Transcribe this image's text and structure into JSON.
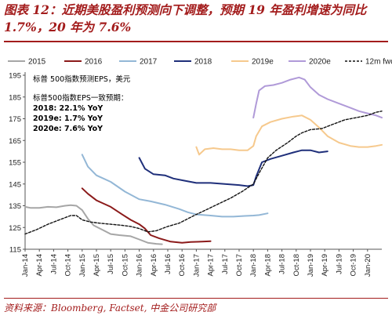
{
  "header": {
    "title": "图表 12：近期美股盈利预测向下调整，预期 19 年盈利增速为同比 1.7%，20 年为 7.6%"
  },
  "source": "资料来源：Bloomberg, Factset, 中金公司研究部",
  "chart_data": {
    "type": "line",
    "title": "",
    "xlabel": "",
    "ylabel": "",
    "ylim": [
      115,
      195
    ],
    "yticks": [
      115,
      125,
      135,
      145,
      155,
      165,
      175,
      185,
      195
    ],
    "x_range": [
      2014.0,
      2020.25
    ],
    "x_tick_labels": [
      "Jan-14",
      "Apr-14",
      "Jul-14",
      "Oct-14",
      "Jan-15",
      "Apr-15",
      "Jul-15",
      "Oct-15",
      "Jan-16",
      "Apr-16",
      "Jul-16",
      "Oct-16",
      "Jan-17",
      "Apr-17",
      "Jul-17",
      "Oct-17",
      "Jan-18",
      "Apr-18",
      "Jul-18",
      "Oct-18",
      "Jan-19",
      "Apr-19",
      "Jul-19",
      "Oct-19",
      "Jan-20"
    ],
    "grid": false,
    "legend_placement": "top",
    "annotations": [
      "标普 500指数预测EPS，美元",
      "标普500指数EPS一致预期：",
      "2018: 22.1% YoY",
      "2019e: 1.7% YoY",
      "2020e: 7.6% YoY"
    ],
    "series": [
      {
        "name": "2015",
        "color": "#a6a6a6",
        "dash": "solid",
        "points": [
          [
            2014.0,
            134.5
          ],
          [
            2014.1,
            134.0
          ],
          [
            2014.25,
            134.0
          ],
          [
            2014.4,
            134.5
          ],
          [
            2014.55,
            134.3
          ],
          [
            2014.7,
            135.0
          ],
          [
            2014.8,
            135.3
          ],
          [
            2014.9,
            135.0
          ],
          [
            2015.0,
            133.0
          ],
          [
            2015.1,
            129.0
          ],
          [
            2015.2,
            126.0
          ],
          [
            2015.35,
            124.0
          ],
          [
            2015.5,
            122.0
          ],
          [
            2015.65,
            121.5
          ],
          [
            2015.85,
            121.0
          ],
          [
            2016.0,
            119.5
          ],
          [
            2016.15,
            118.0
          ],
          [
            2016.3,
            117.5
          ],
          [
            2016.4,
            117.3
          ]
        ]
      },
      {
        "name": "2016",
        "color": "#8b1a1a",
        "dash": "solid",
        "points": [
          [
            2015.0,
            143.0
          ],
          [
            2015.1,
            140.5
          ],
          [
            2015.25,
            137.5
          ],
          [
            2015.5,
            134.5
          ],
          [
            2015.7,
            131.0
          ],
          [
            2015.85,
            128.5
          ],
          [
            2016.0,
            126.5
          ],
          [
            2016.1,
            124.5
          ],
          [
            2016.2,
            121.5
          ],
          [
            2016.35,
            120.0
          ],
          [
            2016.55,
            118.5
          ],
          [
            2016.75,
            118.0
          ],
          [
            2016.9,
            118.3
          ],
          [
            2017.1,
            118.5
          ],
          [
            2017.25,
            118.7
          ]
        ]
      },
      {
        "name": "2017",
        "color": "#93b7d6",
        "dash": "solid",
        "points": [
          [
            2015.0,
            158.5
          ],
          [
            2015.1,
            153.0
          ],
          [
            2015.25,
            149.0
          ],
          [
            2015.5,
            146.0
          ],
          [
            2015.75,
            141.5
          ],
          [
            2016.0,
            138.0
          ],
          [
            2016.2,
            137.0
          ],
          [
            2016.45,
            135.5
          ],
          [
            2016.7,
            133.5
          ],
          [
            2016.85,
            132.0
          ],
          [
            2017.0,
            131.0
          ],
          [
            2017.25,
            130.5
          ],
          [
            2017.45,
            130.0
          ],
          [
            2017.65,
            130.0
          ],
          [
            2017.85,
            130.3
          ],
          [
            2018.0,
            130.5
          ],
          [
            2018.1,
            130.7
          ],
          [
            2018.25,
            131.5
          ]
        ]
      },
      {
        "name": "2018",
        "color": "#1f2f7a",
        "dash": "solid",
        "points": [
          [
            2016.0,
            157.0
          ],
          [
            2016.1,
            152.0
          ],
          [
            2016.25,
            149.5
          ],
          [
            2016.45,
            149.0
          ],
          [
            2016.6,
            147.5
          ],
          [
            2016.8,
            146.5
          ],
          [
            2017.0,
            145.5
          ],
          [
            2017.25,
            145.5
          ],
          [
            2017.5,
            145.0
          ],
          [
            2017.75,
            144.5
          ],
          [
            2017.9,
            144.0
          ],
          [
            2018.0,
            144.5
          ],
          [
            2018.05,
            148.5
          ],
          [
            2018.15,
            155.0
          ],
          [
            2018.3,
            156.5
          ],
          [
            2018.5,
            158.0
          ],
          [
            2018.7,
            159.5
          ],
          [
            2018.85,
            160.5
          ],
          [
            2019.0,
            160.5
          ],
          [
            2019.15,
            159.5
          ],
          [
            2019.3,
            160.0
          ]
        ]
      },
      {
        "name": "2019e",
        "color": "#f6c98d",
        "dash": "solid",
        "points": [
          [
            2017.0,
            162.0
          ],
          [
            2017.05,
            158.5
          ],
          [
            2017.15,
            161.0
          ],
          [
            2017.3,
            161.5
          ],
          [
            2017.45,
            161.0
          ],
          [
            2017.6,
            161.0
          ],
          [
            2017.75,
            160.5
          ],
          [
            2017.9,
            160.5
          ],
          [
            2018.0,
            162.5
          ],
          [
            2018.05,
            167.0
          ],
          [
            2018.15,
            171.5
          ],
          [
            2018.3,
            173.5
          ],
          [
            2018.5,
            175.0
          ],
          [
            2018.7,
            176.0
          ],
          [
            2018.85,
            176.5
          ],
          [
            2019.0,
            174.5
          ],
          [
            2019.15,
            171.0
          ],
          [
            2019.3,
            167.0
          ],
          [
            2019.5,
            164.0
          ],
          [
            2019.7,
            162.5
          ],
          [
            2019.85,
            162.0
          ],
          [
            2020.0,
            162.0
          ],
          [
            2020.15,
            162.5
          ],
          [
            2020.25,
            163.0
          ]
        ]
      },
      {
        "name": "2020e",
        "color": "#b09ad8",
        "dash": "solid",
        "points": [
          [
            2018.0,
            175.5
          ],
          [
            2018.05,
            182.0
          ],
          [
            2018.1,
            188.0
          ],
          [
            2018.2,
            190.0
          ],
          [
            2018.35,
            190.5
          ],
          [
            2018.5,
            191.5
          ],
          [
            2018.65,
            193.0
          ],
          [
            2018.8,
            194.0
          ],
          [
            2018.9,
            193.0
          ],
          [
            2019.0,
            189.5
          ],
          [
            2019.15,
            186.0
          ],
          [
            2019.3,
            184.0
          ],
          [
            2019.5,
            182.0
          ],
          [
            2019.7,
            180.0
          ],
          [
            2019.85,
            178.5
          ],
          [
            2020.0,
            177.5
          ],
          [
            2020.15,
            176.5
          ],
          [
            2020.25,
            175.5
          ]
        ]
      },
      {
        "name": "12m fwd",
        "color": "#111111",
        "dash": "dashed",
        "points": [
          [
            2014.0,
            122.0
          ],
          [
            2014.2,
            124.0
          ],
          [
            2014.4,
            126.5
          ],
          [
            2014.6,
            128.5
          ],
          [
            2014.8,
            130.5
          ],
          [
            2014.9,
            130.5
          ],
          [
            2015.0,
            128.5
          ],
          [
            2015.15,
            127.5
          ],
          [
            2015.3,
            127.0
          ],
          [
            2015.5,
            126.5
          ],
          [
            2015.7,
            126.0
          ],
          [
            2015.85,
            125.5
          ],
          [
            2016.0,
            124.5
          ],
          [
            2016.15,
            123.0
          ],
          [
            2016.3,
            123.5
          ],
          [
            2016.5,
            125.5
          ],
          [
            2016.7,
            127.0
          ],
          [
            2016.85,
            129.0
          ],
          [
            2017.0,
            131.0
          ],
          [
            2017.2,
            133.5
          ],
          [
            2017.4,
            136.0
          ],
          [
            2017.6,
            138.5
          ],
          [
            2017.8,
            141.5
          ],
          [
            2018.0,
            145.0
          ],
          [
            2018.1,
            150.0
          ],
          [
            2018.25,
            157.0
          ],
          [
            2018.4,
            160.5
          ],
          [
            2018.6,
            164.0
          ],
          [
            2018.75,
            167.0
          ],
          [
            2018.85,
            168.5
          ],
          [
            2019.0,
            170.0
          ],
          [
            2019.2,
            170.5
          ],
          [
            2019.4,
            172.5
          ],
          [
            2019.6,
            174.5
          ],
          [
            2019.8,
            175.5
          ],
          [
            2020.0,
            176.5
          ],
          [
            2020.15,
            178.0
          ],
          [
            2020.25,
            178.5
          ]
        ]
      }
    ]
  }
}
